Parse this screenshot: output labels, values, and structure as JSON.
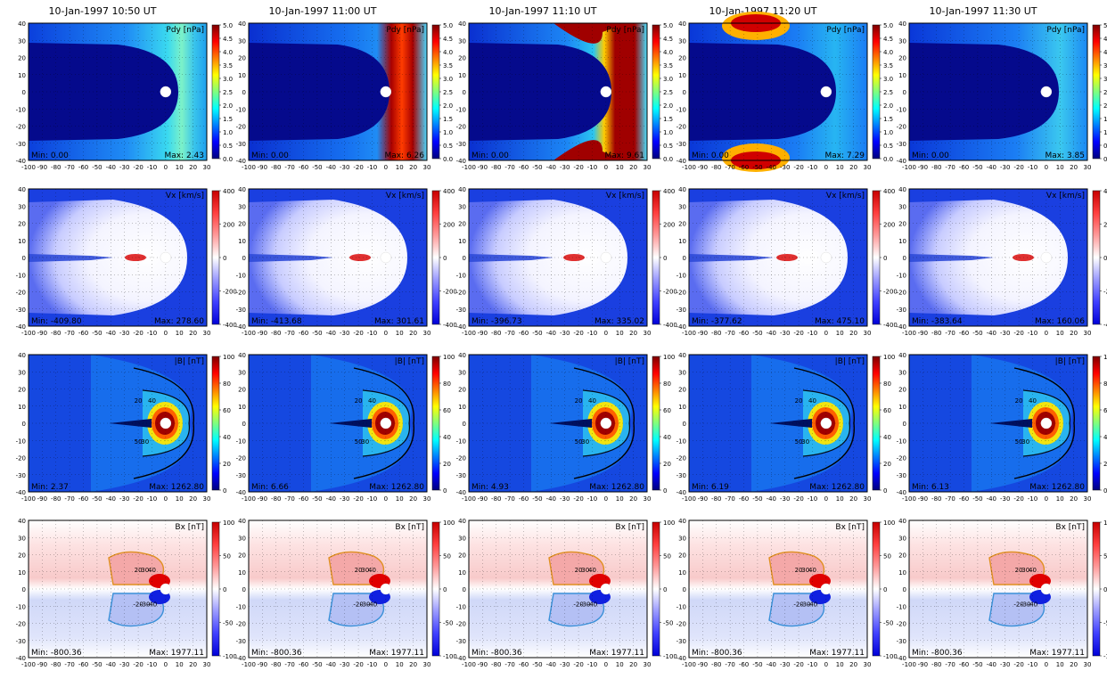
{
  "titles": [
    "10-Jan-1997 10:50 UT",
    "10-Jan-1997 11:00 UT",
    "10-Jan-1997 11:10 UT",
    "10-Jan-1997 11:20 UT",
    "10-Jan-1997 11:30 UT"
  ],
  "chart_data": [
    {
      "type": "heatmap",
      "row": "Pdy",
      "label": "Pdy [nPa]",
      "xlim": [
        -100,
        30
      ],
      "ylim": [
        -40,
        40
      ],
      "xticks": [
        -100,
        -90,
        -80,
        -70,
        -60,
        -50,
        -40,
        -30,
        -20,
        -10,
        0,
        10,
        20,
        30
      ],
      "yticks": [
        -40,
        -30,
        -20,
        -10,
        0,
        10,
        20,
        30,
        40
      ],
      "colorbar_ticks": [
        0.0,
        0.5,
        1.0,
        1.5,
        2.0,
        2.5,
        3.0,
        3.5,
        4.0,
        4.5,
        5.0
      ],
      "colorbar_labels": [
        "0.0",
        "0.5",
        "1.0",
        "1.5",
        "2.0",
        "2.5",
        "3.0",
        "3.5",
        "4.0",
        "4.5",
        "5.0"
      ],
      "colormap": "jet",
      "panels": [
        {
          "time": "10:50",
          "min": "Min: 0.00",
          "max": "Max: 2.43"
        },
        {
          "time": "11:00",
          "min": "Min: 0.00",
          "max": "Max: 6.26"
        },
        {
          "time": "11:10",
          "min": "Min: 0.00",
          "max": "Max: 9.61"
        },
        {
          "time": "11:20",
          "min": "Min: 0.00",
          "max": "Max: 7.29"
        },
        {
          "time": "11:30",
          "min": "Min: 0.00",
          "max": "Max: 3.85"
        }
      ]
    },
    {
      "type": "heatmap",
      "row": "Vx",
      "label": "Vx [km/s]",
      "xlim": [
        -100,
        30
      ],
      "ylim": [
        -40,
        40
      ],
      "xticks": [
        -100,
        -90,
        -80,
        -70,
        -60,
        -50,
        -40,
        -30,
        -20,
        -10,
        0,
        10,
        20,
        30
      ],
      "yticks": [
        -40,
        -30,
        -20,
        -10,
        0,
        10,
        20,
        30,
        40
      ],
      "colorbar_ticks": [
        -400,
        -200,
        0,
        200,
        400
      ],
      "colorbar_labels": [
        "-400",
        "-200",
        "0",
        "200",
        "400"
      ],
      "colormap": "bwr",
      "panels": [
        {
          "time": "10:50",
          "min": "Min: -409.80",
          "max": "Max: 278.60"
        },
        {
          "time": "11:00",
          "min": "Min: -413.68",
          "max": "Max: 301.61"
        },
        {
          "time": "11:10",
          "min": "Min: -396.73",
          "max": "Max: 335.02"
        },
        {
          "time": "11:20",
          "min": "Min: -377.62",
          "max": "Max: 475.10"
        },
        {
          "time": "11:30",
          "min": "Min: -383.64",
          "max": "Max: 160.06"
        }
      ]
    },
    {
      "type": "heatmap",
      "row": "B",
      "label": "|B| [nT]",
      "xlim": [
        -100,
        30
      ],
      "ylim": [
        -40,
        40
      ],
      "xticks": [
        -100,
        -90,
        -80,
        -70,
        -60,
        -50,
        -40,
        -30,
        -20,
        -10,
        0,
        10,
        20,
        30
      ],
      "yticks": [
        -40,
        -30,
        -20,
        -10,
        0,
        10,
        20,
        30,
        40
      ],
      "colorbar_ticks": [
        0,
        20,
        40,
        60,
        80,
        100
      ],
      "colorbar_labels": [
        "0",
        "20",
        "40",
        "60",
        "80",
        "100"
      ],
      "colormap": "jet",
      "contour_labels": [
        "20",
        "30",
        "40",
        "50"
      ],
      "panels": [
        {
          "time": "10:50",
          "min": "Min: 2.37",
          "max": "Max: 1262.80"
        },
        {
          "time": "11:00",
          "min": "Min: 6.66",
          "max": "Max: 1262.80"
        },
        {
          "time": "11:10",
          "min": "Min: 4.93",
          "max": "Max: 1262.80"
        },
        {
          "time": "11:20",
          "min": "Min: 6.19",
          "max": "Max: 1262.80"
        },
        {
          "time": "11:30",
          "min": "Min: 6.13",
          "max": "Max: 1262.80"
        }
      ]
    },
    {
      "type": "heatmap",
      "row": "Bx",
      "label": "Bx [nT]",
      "xlim": [
        -100,
        30
      ],
      "ylim": [
        -40,
        40
      ],
      "xticks": [
        -100,
        -90,
        -80,
        -70,
        -60,
        -50,
        -40,
        -30,
        -20,
        -10,
        0,
        10,
        20,
        30
      ],
      "yticks": [
        -40,
        -30,
        -20,
        -10,
        0,
        10,
        20,
        30,
        40
      ],
      "colorbar_ticks": [
        -100,
        -50,
        0,
        50,
        100
      ],
      "colorbar_labels": [
        "-100",
        "-50",
        "0",
        "50",
        "100"
      ],
      "colormap": "bwr",
      "contour_labels": [
        "20",
        "30",
        "40",
        "-20",
        "-30",
        "-40"
      ],
      "panels": [
        {
          "time": "10:50",
          "min": "Min: -800.36",
          "max": "Max: 1977.11"
        },
        {
          "time": "11:00",
          "min": "Min: -800.36",
          "max": "Max: 1977.11"
        },
        {
          "time": "11:10",
          "min": "Min: -800.36",
          "max": "Max: 1977.11"
        },
        {
          "time": "11:20",
          "min": "Min: -800.36",
          "max": "Max: 1977.11"
        },
        {
          "time": "11:30",
          "min": "Min: -800.36",
          "max": "Max: 1977.11"
        }
      ]
    }
  ]
}
